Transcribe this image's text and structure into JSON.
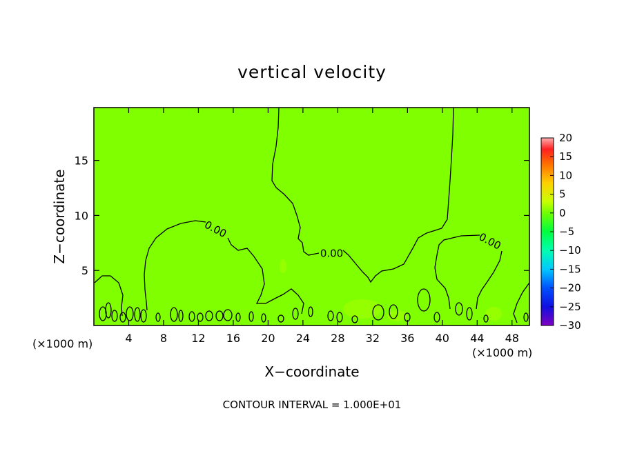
{
  "chart_data": {
    "type": "heatmap",
    "title": "vertical velocity",
    "xlabel": "X−coordinate",
    "ylabel": "Z−coordinate",
    "x_unit_left": "(×1000 m)",
    "x_unit_right": "(×1000 m)",
    "xlim": [
      0,
      50
    ],
    "ylim": [
      0,
      19.8
    ],
    "x_ticks": [
      4,
      8,
      12,
      16,
      20,
      24,
      28,
      32,
      36,
      40,
      44,
      48
    ],
    "x_tick_labels": [
      "4",
      "8",
      "12",
      "16",
      "20",
      "24",
      "28",
      "32",
      "36",
      "40",
      "44",
      "48"
    ],
    "y_ticks": [
      5,
      10,
      15
    ],
    "y_tick_labels": [
      "5",
      "10",
      "15"
    ],
    "field_color": "#7fff00",
    "contour_labels": [
      {
        "text": "0.00",
        "x": 14.0,
        "y": 8.8
      },
      {
        "text": "0.00",
        "x": 27.3,
        "y": 6.6
      },
      {
        "text": "0.00",
        "x": 45.5,
        "y": 7.7
      }
    ],
    "colorbar": {
      "min": -30,
      "max": 20,
      "tick_labels": [
        "20",
        "15",
        "10",
        "5",
        "0",
        "−5",
        "−10",
        "−15",
        "−20",
        "−25",
        "−30"
      ],
      "stops": [
        {
          "v": 20,
          "color": "#ffb0b0"
        },
        {
          "v": 17,
          "color": "#ff2020"
        },
        {
          "v": 13,
          "color": "#ff7000"
        },
        {
          "v": 8,
          "color": "#ffd000"
        },
        {
          "v": 3,
          "color": "#c8ff00"
        },
        {
          "v": 0,
          "color": "#70ff00"
        },
        {
          "v": -5,
          "color": "#00ff40"
        },
        {
          "v": -10,
          "color": "#00ffb0"
        },
        {
          "v": -15,
          "color": "#00c8ff"
        },
        {
          "v": -20,
          "color": "#0050ff"
        },
        {
          "v": -25,
          "color": "#1010e0"
        },
        {
          "v": -30,
          "color": "#8000c0"
        }
      ]
    },
    "footnote": "CONTOUR INTERVAL = 1.000E+01"
  }
}
